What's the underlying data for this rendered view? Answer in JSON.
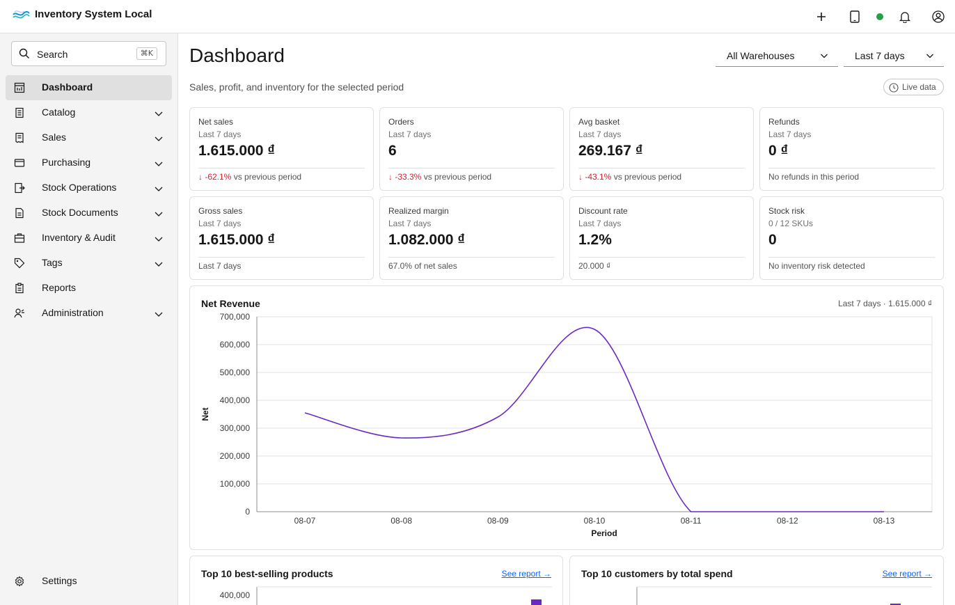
{
  "app": {
    "title": "Inventory System Local"
  },
  "header": {
    "icons": [
      "plus-icon",
      "tablet-icon",
      "status-dot",
      "bell-icon",
      "user-avatar-icon"
    ],
    "status_color": "#24a148"
  },
  "sidebar": {
    "search": {
      "placeholder": "Search",
      "shortcut": "⌘K"
    },
    "items": [
      {
        "label": "Dashboard",
        "icon": "dashboard-icon",
        "active": true,
        "expandable": false
      },
      {
        "label": "Catalog",
        "icon": "catalog-icon",
        "expandable": true
      },
      {
        "label": "Sales",
        "icon": "receipt-icon",
        "expandable": true
      },
      {
        "label": "Purchasing",
        "icon": "card-icon",
        "expandable": true
      },
      {
        "label": "Stock Operations",
        "icon": "transfer-icon",
        "expandable": true
      },
      {
        "label": "Stock Documents",
        "icon": "document-icon",
        "expandable": true
      },
      {
        "label": "Inventory & Audit",
        "icon": "briefcase-icon",
        "expandable": true
      },
      {
        "label": "Tags",
        "icon": "tag-icon",
        "expandable": true
      },
      {
        "label": "Reports",
        "icon": "report-icon",
        "expandable": false
      },
      {
        "label": "Administration",
        "icon": "user-admin-icon",
        "expandable": true
      }
    ],
    "settings_label": "Settings"
  },
  "main": {
    "title": "Dashboard",
    "subtitle": "Sales, profit, and inventory for the selected period",
    "warehouse_filter": "All Warehouses",
    "period_filter": "Last 7 days",
    "live_label": "Live data"
  },
  "kpis": [
    {
      "label": "Net sales",
      "period": "Last 7 days",
      "value": "1.615.000 ₫",
      "delta": "↓ -62.1%",
      "foot": "vs previous period"
    },
    {
      "label": "Orders",
      "period": "Last 7 days",
      "value": "6",
      "delta": "↓ -33.3%",
      "foot": "vs previous period"
    },
    {
      "label": "Avg basket",
      "period": "Last 7 days",
      "value": "269.167 ₫",
      "delta": "↓ -43.1%",
      "foot": "vs previous period"
    },
    {
      "label": "Refunds",
      "period": "Last 7 days",
      "value": "0 ₫",
      "delta": "",
      "foot": "No refunds in this period"
    },
    {
      "label": "Gross sales",
      "period": "Last 7 days",
      "value": "1.615.000 ₫",
      "delta": "",
      "foot": "Last 7 days"
    },
    {
      "label": "Realized margin",
      "period": "Last 7 days",
      "value": "1.082.000 ₫",
      "delta": "",
      "foot": "67.0% of net sales"
    },
    {
      "label": "Discount rate",
      "period": "Last 7 days",
      "value": "1.2%",
      "delta": "",
      "foot": "20.000 ₫"
    },
    {
      "label": "Stock risk",
      "period": "0 / 12 SKUs",
      "value": "0",
      "delta": "",
      "foot": "No inventory risk detected"
    }
  ],
  "revenue_panel": {
    "title": "Net Revenue",
    "meta": "Last 7 days · 1.615.000 ₫"
  },
  "chart_data": {
    "type": "line",
    "title": "Net Revenue",
    "xlabel": "Period",
    "ylabel": "Net",
    "categories": [
      "08-07",
      "08-08",
      "08-09",
      "08-10",
      "08-11",
      "08-12",
      "08-13"
    ],
    "series": [
      {
        "values": [
          355000,
          265000,
          340000,
          655000,
          0,
          0,
          0
        ],
        "color": "#6929c4"
      }
    ],
    "yticks": [
      "0",
      "100,000",
      "200,000",
      "300,000",
      "400,000",
      "500,000",
      "600,000",
      "700,000"
    ],
    "ylim": [
      0,
      700000
    ],
    "grid": true,
    "legend": "none"
  },
  "bottom_panels": [
    {
      "title": "Top 10 best-selling products",
      "link": "See report →",
      "visible_tick": "400,000"
    },
    {
      "title": "Top 10 customers by total spend",
      "link": "See report →"
    }
  ]
}
